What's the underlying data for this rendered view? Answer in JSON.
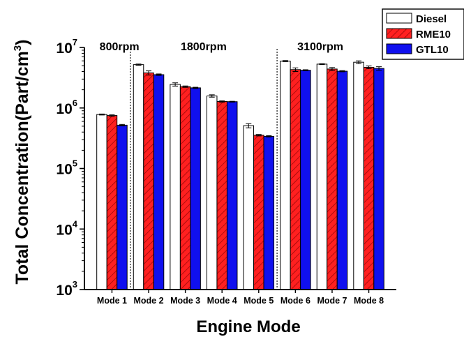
{
  "chart_data": {
    "type": "bar",
    "title": "",
    "xlabel": "Engine Mode",
    "ylabel": {
      "base": "Total Concentration(Part/cm",
      "sup": "3",
      "close": ")"
    },
    "yscale": "log",
    "ylim": [
      1000,
      10000000
    ],
    "yticks": [
      {
        "value": 1000,
        "base": "10",
        "exp": "3"
      },
      {
        "value": 10000,
        "base": "10",
        "exp": "4"
      },
      {
        "value": 100000,
        "base": "10",
        "exp": "5"
      },
      {
        "value": 1000000,
        "base": "10",
        "exp": "6"
      },
      {
        "value": 10000000,
        "base": "10",
        "exp": "7"
      }
    ],
    "categories": [
      "Mode 1",
      "Mode 2",
      "Mode 3",
      "Mode 4",
      "Mode 5",
      "Mode 6",
      "Mode 7",
      "Mode 8"
    ],
    "series": [
      {
        "name": "Diesel",
        "fill": "#ffffff",
        "hatch": false,
        "values": [
          780000,
          5200000,
          2450000,
          1580000,
          510000,
          5950000,
          5300000,
          5700000
        ],
        "errors": [
          15000,
          120000,
          150000,
          70000,
          40000,
          120000,
          90000,
          300000
        ]
      },
      {
        "name": "RME10",
        "fill": "#ff2020",
        "hatch": true,
        "values": [
          750000,
          3800000,
          2250000,
          1280000,
          355000,
          4300000,
          4400000,
          4700000
        ],
        "errors": [
          20000,
          300000,
          60000,
          30000,
          10000,
          300000,
          250000,
          250000
        ]
      },
      {
        "name": "GTL10",
        "fill": "#1010ee",
        "hatch": false,
        "values": [
          520000,
          3550000,
          2150000,
          1270000,
          340000,
          4200000,
          4050000,
          4500000
        ],
        "errors": [
          15000,
          100000,
          50000,
          20000,
          8000,
          80000,
          90000,
          300000
        ]
      }
    ],
    "groups": [
      {
        "label": "800rpm",
        "from": 0,
        "to": 0
      },
      {
        "label": "1800rpm",
        "from": 1,
        "to": 4
      },
      {
        "label": "3100rpm",
        "from": 5,
        "to": 7
      }
    ],
    "legend": "top-right",
    "grid": false
  }
}
